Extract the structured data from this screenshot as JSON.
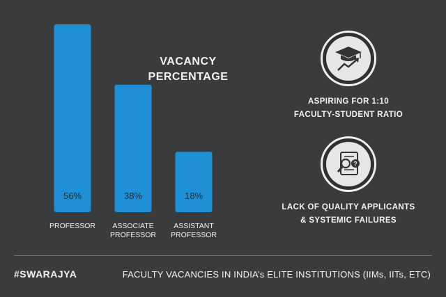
{
  "chart_data": {
    "type": "bar",
    "title": "VACANCY PERCENTAGE",
    "categories": [
      "PROFESSOR",
      "ASSOCIATE PROFESSOR",
      "ASSISTANT PROFESSOR"
    ],
    "category_lines": [
      [
        "PROFESSOR"
      ],
      [
        "ASSOCIATE",
        "PROFESSOR"
      ],
      [
        "ASSISTANT",
        "PROFESSOR"
      ]
    ],
    "values": [
      56,
      38,
      18
    ],
    "value_labels": [
      "56%",
      "38%",
      "18%"
    ],
    "ylim": [
      0,
      56
    ],
    "bar_color": "#1f8fd6",
    "grid": false
  },
  "info": {
    "item1": {
      "icon": "graduation-growth-icon",
      "text_line1": "ASPIRING FOR 1:10",
      "text_line2": "FACULTY-STUDENT RATIO"
    },
    "item2": {
      "icon": "document-search-icon",
      "text_line1": "LACK OF QUALITY APPLICANTS",
      "text_line2": "& SYSTEMIC FAILURES"
    }
  },
  "footer": {
    "hashtag": "#SWARAJYA",
    "caption": "FACULTY VACANCIES IN INDIA’s ELITE INSTITUTIONS (IIMs, IITs, ETC)"
  },
  "colors": {
    "background": "#3a3b3d",
    "bar": "#1f8fd6",
    "text": "#f2f2f2"
  }
}
